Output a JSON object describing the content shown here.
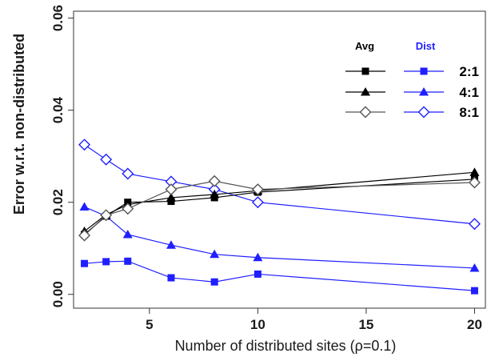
{
  "chart_data": {
    "type": "line",
    "title": "",
    "xlabel": "Number of distributed sites (ρ=0.1)",
    "ylabel": "Error w.r.t. non-distributed",
    "xlim": [
      1.5,
      20.5
    ],
    "ylim": [
      -0.003,
      0.0615
    ],
    "xticks": [
      5,
      10,
      15,
      20
    ],
    "xtick_labels": [
      "5",
      "10",
      "15",
      "20"
    ],
    "yticks": [
      0.0,
      0.02,
      0.04,
      0.06
    ],
    "ytick_labels": [
      "0.00",
      "0.02",
      "0.04",
      "0.06"
    ],
    "grid": false,
    "legend": {
      "position": "top-right",
      "headers": [
        "Avg",
        "Dist"
      ],
      "header_colors": [
        "#000000",
        "#1f1fff"
      ],
      "rows": [
        "2:1",
        "4:1",
        "8:1"
      ]
    },
    "x": [
      2,
      3,
      4,
      6,
      8,
      10,
      20
    ],
    "series": [
      {
        "group": "Avg",
        "ratio": "2:1",
        "marker": "square",
        "color": "#000000",
        "values": [
          0.013,
          0.017,
          0.02,
          0.0202,
          0.021,
          0.0222,
          0.025
        ]
      },
      {
        "group": "Avg",
        "ratio": "4:1",
        "marker": "triangle",
        "color": "#000000",
        "values": [
          0.0137,
          0.0173,
          0.0195,
          0.021,
          0.0217,
          0.0225,
          0.0265
        ]
      },
      {
        "group": "Avg",
        "ratio": "8:1",
        "marker": "diamond-open",
        "color": "#555555",
        "values": [
          0.0128,
          0.0172,
          0.0186,
          0.0228,
          0.0246,
          0.0228,
          0.0243
        ]
      },
      {
        "group": "Dist",
        "ratio": "2:1",
        "marker": "square",
        "color": "#1f1fff",
        "values": [
          0.0067,
          0.0071,
          0.0072,
          0.0036,
          0.0027,
          0.0044,
          0.0008
        ]
      },
      {
        "group": "Dist",
        "ratio": "4:1",
        "marker": "triangle",
        "color": "#1f1fff",
        "values": [
          0.019,
          0.017,
          0.013,
          0.0107,
          0.0087,
          0.008,
          0.0057
        ]
      },
      {
        "group": "Dist",
        "ratio": "8:1",
        "marker": "diamond-open",
        "color": "#1f1fff",
        "values": [
          0.0325,
          0.0293,
          0.0262,
          0.0245,
          0.0228,
          0.02,
          0.0153
        ]
      }
    ]
  }
}
